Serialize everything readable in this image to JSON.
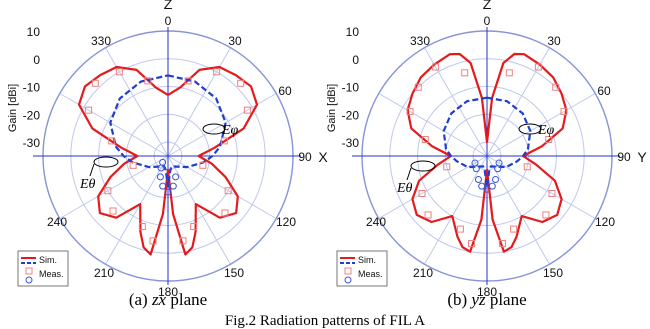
{
  "chart_data": [
    {
      "type": "polar",
      "caption_label": "(a)",
      "caption_plane": "zx",
      "caption_rest": "plane",
      "top_axis": "Z",
      "side_axis": "X",
      "ylabel": "Gain [dBi]",
      "rlim": [
        -35,
        10
      ],
      "radial_ticks": [
        "10",
        "0",
        "-10",
        "-20",
        "-30"
      ],
      "angle_ticks": [
        "0",
        "30",
        "60",
        "90",
        "120",
        "150",
        "180",
        "210",
        "240",
        "330"
      ],
      "legend": [
        "Sim.",
        "Meas."
      ],
      "annotations": [
        "Eθ",
        "Eφ"
      ],
      "series": [
        {
          "name": "Eθ",
          "kind": "sim",
          "color": "#e41a1c",
          "angles": [
            0,
            10,
            20,
            30,
            40,
            50,
            60,
            70,
            80,
            90,
            100,
            110,
            120,
            130,
            140,
            150,
            160,
            165,
            170,
            175,
            180,
            185,
            190,
            195,
            200,
            210,
            220,
            230,
            240,
            250,
            260,
            270,
            280,
            290,
            300,
            310,
            320,
            330,
            340,
            350
          ],
          "gain": [
            -13,
            -10,
            -2,
            2,
            3,
            4,
            2,
            -6,
            -18,
            -24,
            -19,
            -13,
            -6,
            -3,
            -6,
            -15,
            -6,
            -1,
            1,
            -14,
            -30,
            -14,
            1,
            -1,
            -6,
            -15,
            -6,
            -3,
            -6,
            -13,
            -19,
            -24,
            -18,
            -6,
            2,
            4,
            3,
            2,
            -2,
            -10
          ]
        },
        {
          "name": "Eφ",
          "kind": "sim",
          "color": "#1f3fd0",
          "angles": [
            0,
            20,
            40,
            60,
            80,
            90,
            100,
            120,
            140,
            160,
            170,
            180,
            190,
            200,
            220,
            240,
            260,
            270,
            280,
            300,
            320,
            340
          ],
          "gain": [
            -6,
            -6.5,
            -8,
            -11,
            -16,
            -19,
            -22,
            -27,
            -30,
            -31,
            -30,
            -24,
            -30,
            -31,
            -30,
            -27,
            -22,
            -19,
            -16,
            -11,
            -8,
            -6.5
          ]
        },
        {
          "name": "Eθ",
          "kind": "meas",
          "color": "#e41a1c",
          "angles": [
            15,
            30,
            45,
            60,
            75,
            105,
            120,
            135,
            160,
            170,
            190,
            200,
            225,
            240,
            255,
            285,
            300,
            315,
            330,
            345
          ],
          "gain": [
            -7,
            0,
            2,
            -2,
            -14,
            -22,
            -10,
            -6,
            -8,
            -4,
            -4,
            -8,
            -7,
            -10,
            -22,
            -14,
            -2,
            2,
            0,
            -7
          ]
        },
        {
          "name": "Eφ",
          "kind": "meas",
          "color": "#1f3fd0",
          "angles": [
            160,
            170,
            180,
            190,
            200,
            210,
            220
          ],
          "gain": [
            -27,
            -24,
            -22,
            -24,
            -27,
            -30,
            -32
          ]
        }
      ]
    },
    {
      "type": "polar",
      "caption_label": "(b)",
      "caption_plane": "yz",
      "caption_rest": "plane",
      "top_axis": "Z",
      "side_axis": "Y",
      "ylabel": "Gain [dBi]",
      "rlim": [
        -35,
        10
      ],
      "radial_ticks": [
        "10",
        "0",
        "-10",
        "-20",
        "-30"
      ],
      "angle_ticks": [
        "0",
        "30",
        "60",
        "90",
        "120",
        "150",
        "180",
        "210",
        "240",
        "330"
      ],
      "legend": [
        "Sim.",
        "Meas."
      ],
      "annotations": [
        "Eθ",
        "Eφ"
      ],
      "series": [
        {
          "name": "Eθ",
          "kind": "sim",
          "color": "#e41a1c",
          "angles": [
            0,
            5,
            10,
            15,
            20,
            30,
            40,
            50,
            60,
            70,
            80,
            90,
            100,
            110,
            120,
            130,
            140,
            150,
            160,
            165,
            170,
            175,
            180,
            185,
            190,
            195,
            200,
            210,
            220,
            230,
            240,
            250,
            260,
            270,
            280,
            290,
            300,
            310,
            320,
            330,
            340,
            345,
            350,
            355
          ],
          "gain": [
            -30,
            -14,
            -1,
            3,
            4,
            3,
            2,
            0,
            -2,
            -6,
            -15,
            -22,
            -17,
            -9,
            -4,
            -2,
            -4,
            -10,
            -4,
            -1,
            0,
            -12,
            -30,
            -12,
            0,
            -1,
            -4,
            -10,
            -4,
            -2,
            -4,
            -9,
            -17,
            -22,
            -15,
            -6,
            -2,
            0,
            2,
            3,
            4,
            3,
            -1,
            -14
          ]
        },
        {
          "name": "Eφ",
          "kind": "sim",
          "color": "#1f3fd0",
          "angles": [
            0,
            20,
            40,
            60,
            80,
            90,
            100,
            120,
            140,
            160,
            170,
            180,
            190,
            200,
            220,
            240,
            260,
            270,
            280,
            300,
            320,
            340
          ],
          "gain": [
            -14,
            -14,
            -15,
            -17,
            -20,
            -22,
            -24,
            -27,
            -30,
            -31,
            -30,
            -24,
            -30,
            -31,
            -30,
            -27,
            -24,
            -22,
            -20,
            -17,
            -15,
            -14
          ]
        },
        {
          "name": "Eθ",
          "kind": "meas",
          "color": "#e41a1c",
          "angles": [
            15,
            30,
            45,
            60,
            75,
            105,
            120,
            135,
            160,
            170,
            190,
            200,
            225,
            240,
            255,
            285,
            300,
            315,
            330,
            345
          ],
          "gain": [
            -4,
            2,
            0,
            -3,
            -12,
            -20,
            -8,
            -5,
            -7,
            -3,
            -3,
            -7,
            -5,
            -8,
            -20,
            -12,
            -3,
            0,
            2,
            -4
          ]
        },
        {
          "name": "Eφ",
          "kind": "meas",
          "color": "#1f3fd0",
          "angles": [
            120,
            140,
            160,
            170,
            180,
            190,
            200,
            220,
            240
          ],
          "gain": [
            -30,
            -29,
            -26,
            -24,
            -23,
            -24,
            -26,
            -29,
            -30
          ]
        }
      ]
    }
  ],
  "figure_caption": "Fig.2 Radiation patterns of FIL A"
}
